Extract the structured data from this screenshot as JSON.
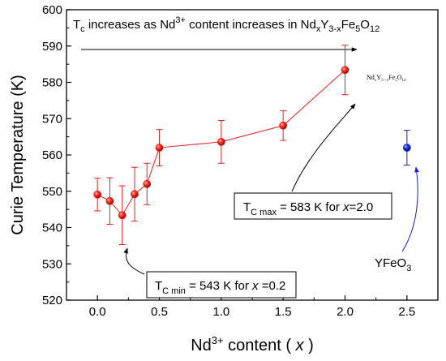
{
  "chart_data": {
    "type": "scatter",
    "title": {
      "base": "T",
      "sub": "c",
      "mid": " increases as Nd",
      "sup": "3+",
      "mid2": " content increases in Nd",
      "x_sub": "x",
      "y": "Y",
      "y_sub": "3-x",
      "fe": "Fe",
      "fe_sub": "5",
      "o": "O",
      "o_sub": "12"
    },
    "xlabel": {
      "pre": "Nd",
      "sup": "3+",
      "mid": " content ( ",
      "var": "x",
      "post": " )"
    },
    "ylabel": "Curie Temperature (K)",
    "xlim": [
      -0.25,
      2.75
    ],
    "ylim": [
      520,
      600
    ],
    "x_ticks": [
      "0.0",
      "0.5",
      "1.0",
      "1.5",
      "2.0",
      "2.5"
    ],
    "y_ticks": [
      "520",
      "530",
      "540",
      "550",
      "560",
      "570",
      "580",
      "590",
      "600"
    ],
    "series": [
      {
        "color": "#e8201c",
        "connected": true,
        "x": [
          0.0,
          0.1,
          0.2,
          0.3,
          0.4,
          0.5,
          1.0,
          1.5,
          2.0
        ],
        "y": [
          549.1,
          547.3,
          543.4,
          549.2,
          552.0,
          562.0,
          563.6,
          568.1,
          583.4
        ],
        "err": [
          4.5,
          6.4,
          8.1,
          7.4,
          5.7,
          5.0,
          5.9,
          4.1,
          6.8
        ]
      },
      {
        "color": "#1a1ad0",
        "connected": false,
        "x": [
          2.5
        ],
        "y": [
          562.0
        ],
        "err": [
          4.8
        ]
      }
    ],
    "annotations": {
      "tc_min": {
        "t": "T",
        "sub": "C min",
        "text": " = 543 K for ",
        "var": "x",
        "post": " =0.2"
      },
      "tc_max": {
        "t": "T",
        "sub": "C max",
        "text": " = 583 K for ",
        "var": "x",
        "post": "=2.0"
      },
      "yfeo3": {
        "pre": "YFeO",
        "sub": "3",
        "color": "#1a1ad0"
      },
      "ndy_label": {
        "nd": "Nd",
        "x": "x",
        "y": "Y",
        "y_sub": "3 - x",
        "fe": "Fe",
        "fe_sub": "5",
        "o": "O",
        "o_sub": "12"
      }
    },
    "grid": false,
    "legend": "none"
  }
}
